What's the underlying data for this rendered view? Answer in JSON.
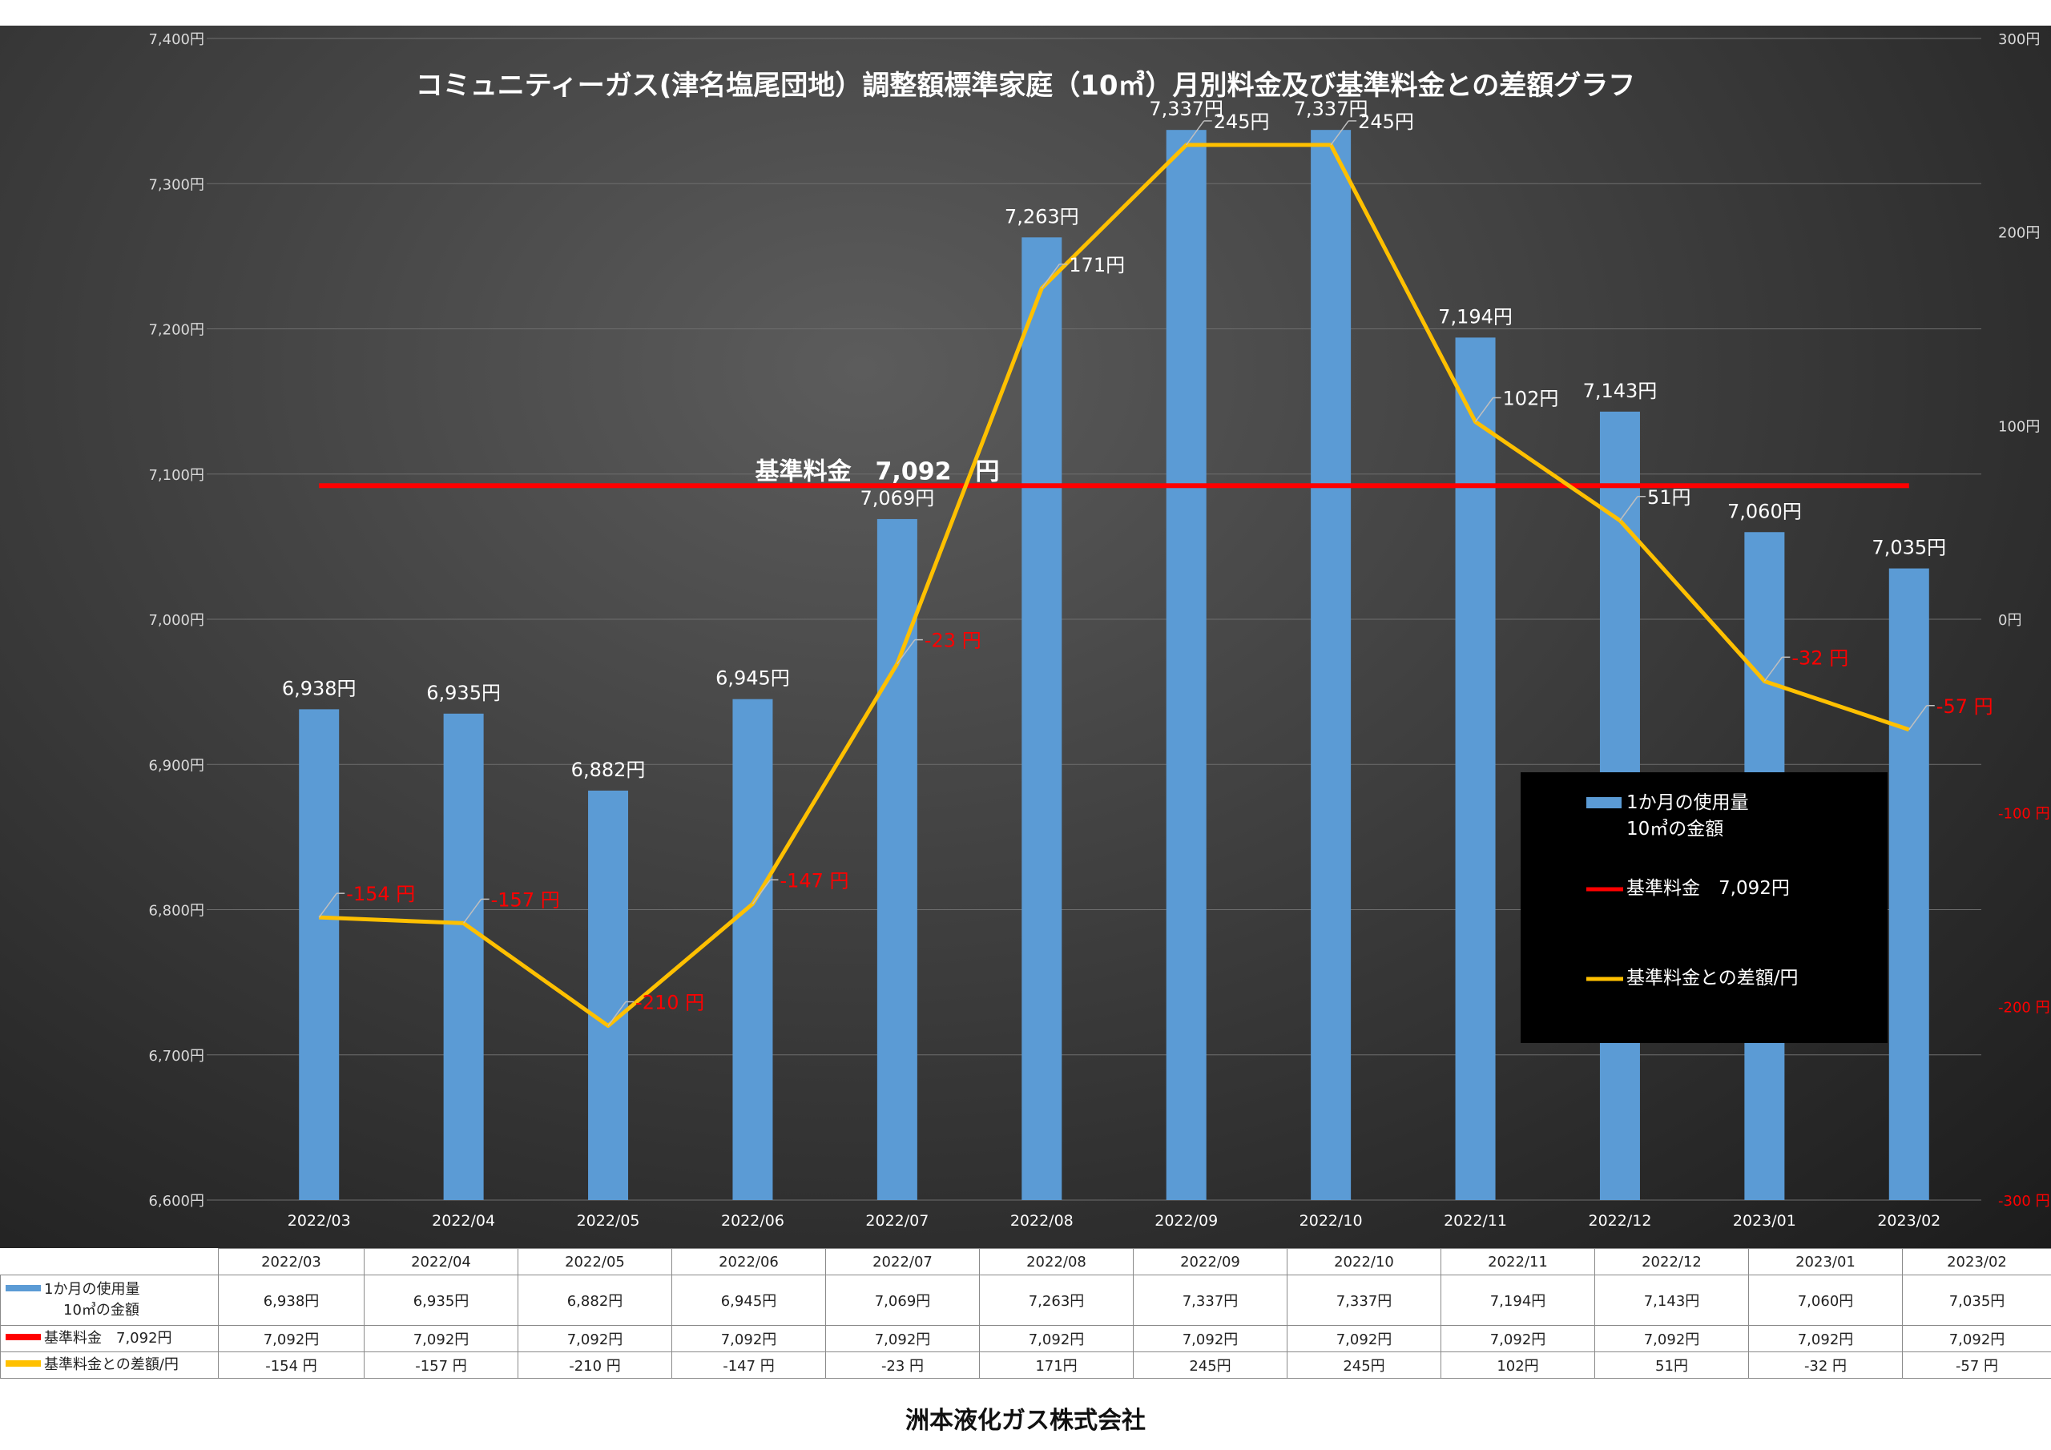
{
  "chart_data": {
    "type": "bar",
    "title": "コミュニティーガス(津名塩尾団地）調整額標準家庭（10㎥）月別料金及び基準料金との差額グラフ",
    "categories": [
      "2022/03",
      "2022/04",
      "2022/05",
      "2022/06",
      "2022/07",
      "2022/08",
      "2022/09",
      "2022/10",
      "2022/11",
      "2022/12",
      "2023/01",
      "2023/02"
    ],
    "series": [
      {
        "name": "1か月の使用量 10㎥の金額",
        "kind": "bar",
        "axis": "left",
        "color": "#5b9bd5",
        "values": [
          6938,
          6935,
          6882,
          6945,
          7069,
          7263,
          7337,
          7337,
          7194,
          7143,
          7060,
          7035
        ],
        "labels": [
          "6,938円",
          "6,935円",
          "6,882円",
          "6,945円",
          "7,069円",
          "7,263円",
          "7,337円",
          "7,337円",
          "7,194円",
          "7,143円",
          "7,060円",
          "7,035円"
        ]
      },
      {
        "name": "基準料金　7,092円",
        "kind": "line",
        "axis": "left",
        "color": "#ff0000",
        "values": [
          7092,
          7092,
          7092,
          7092,
          7092,
          7092,
          7092,
          7092,
          7092,
          7092,
          7092,
          7092
        ]
      },
      {
        "name": "基準料金との差額/円",
        "kind": "line",
        "axis": "right",
        "color": "#ffc000",
        "values": [
          -154,
          -157,
          -210,
          -147,
          -23,
          171,
          245,
          245,
          102,
          51,
          -32,
          -57
        ],
        "labels": [
          "-154 円",
          "-157 円",
          "-210 円",
          "-147 円",
          "-23 円",
          "171円",
          "245円",
          "245円",
          "102円",
          "51円",
          "-32 円",
          "-57 円"
        ]
      }
    ],
    "y_left": {
      "min": 6600,
      "max": 7400,
      "ticks": [
        "6,600円",
        "6,700円",
        "6,800円",
        "6,900円",
        "7,000円",
        "7,100円",
        "7,200円",
        "7,300円",
        "7,400円"
      ]
    },
    "y_right": {
      "min": -300,
      "max": 300,
      "ticks": [
        "-300 円",
        "-200 円",
        "-100 円",
        "0円",
        "100円",
        "200円",
        "300円"
      ]
    },
    "reference_label": "基準料金　7,092　円",
    "legend": {
      "position": "right",
      "items": [
        {
          "label_lines": [
            "1か月の使用量",
            "10㎥の金額"
          ],
          "color": "#5b9bd5"
        },
        {
          "label_lines": [
            "基準料金　7,092円"
          ],
          "color": "#ff0000"
        },
        {
          "label_lines": [
            "基準料金との差額/円"
          ],
          "color": "#ffc000"
        }
      ]
    },
    "grid": true,
    "data_table": {
      "headers": [
        "2022/03",
        "2022/04",
        "2022/05",
        "2022/06",
        "2022/07",
        "2022/08",
        "2022/09",
        "2022/10",
        "2022/11",
        "2022/12",
        "2023/01",
        "2023/02"
      ],
      "rows": [
        {
          "label_lines": [
            "1か月の使用量",
            "10㎥の金額"
          ],
          "color": "#5b9bd5",
          "cells": [
            "6,938円",
            "6,935円",
            "6,882円",
            "6,945円",
            "7,069円",
            "7,263円",
            "7,337円",
            "7,337円",
            "7,194円",
            "7,143円",
            "7,060円",
            "7,035円"
          ]
        },
        {
          "label_lines": [
            "基準料金　7,092円"
          ],
          "color": "#ff0000",
          "cells": [
            "7,092円",
            "7,092円",
            "7,092円",
            "7,092円",
            "7,092円",
            "7,092円",
            "7,092円",
            "7,092円",
            "7,092円",
            "7,092円",
            "7,092円",
            "7,092円"
          ]
        },
        {
          "label_lines": [
            "基準料金との差額/円"
          ],
          "color": "#ffc000",
          "cells": [
            "-154 円",
            "-157 円",
            "-210 円",
            "-147 円",
            "-23 円",
            "171円",
            "245円",
            "245円",
            "102円",
            "51円",
            "-32 円",
            "-57 円"
          ]
        }
      ]
    }
  },
  "footer": "洲本液化ガス株式会社"
}
